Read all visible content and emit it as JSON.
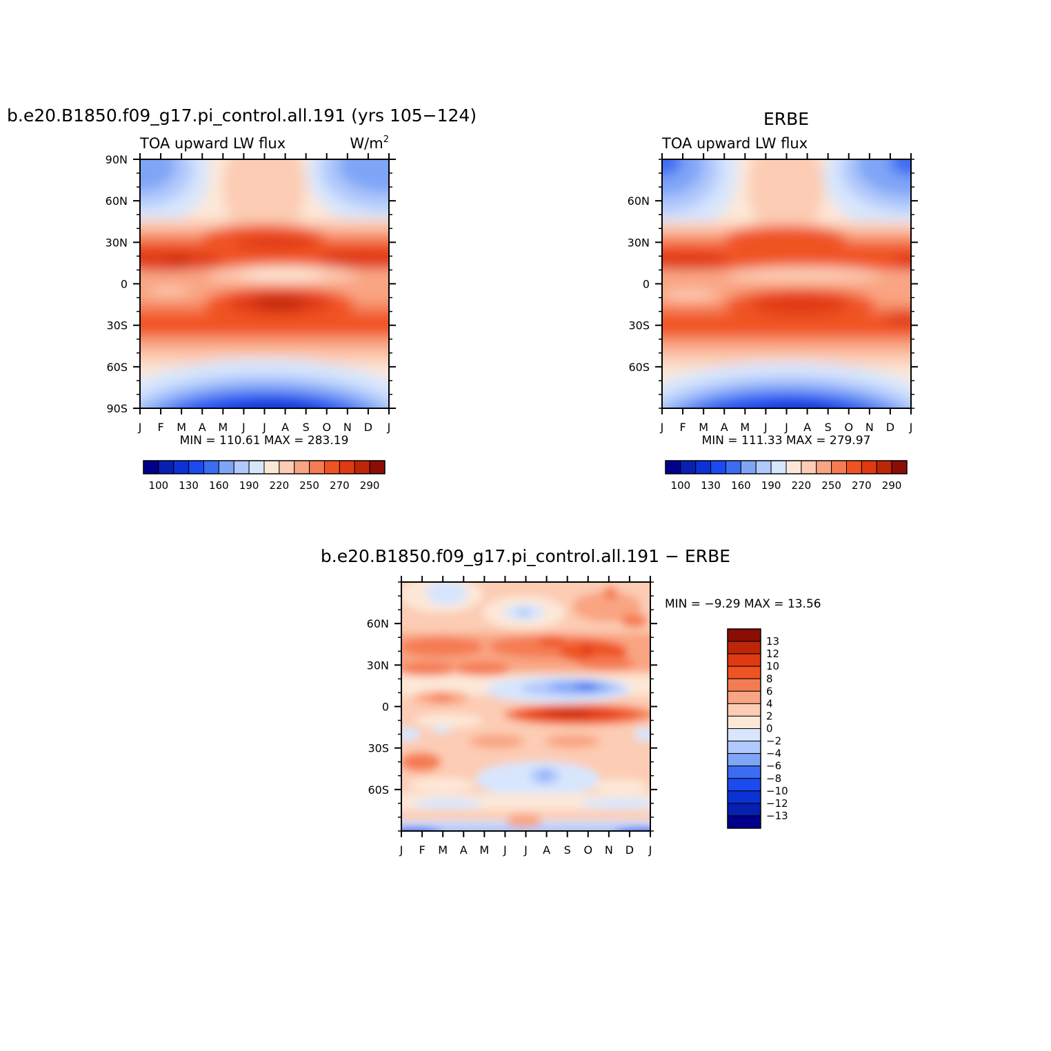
{
  "chart_data": [
    {
      "type": "heatmap",
      "id": "model",
      "title": "b.e20.B1850.f09_g17.pi_control.all.191 (yrs 105−124)",
      "left_label": "TOA upward LW flux",
      "units": "W/m²",
      "units_base": "W/m",
      "units_exp": "2",
      "x_ticks": [
        "J",
        "F",
        "M",
        "A",
        "M",
        "J",
        "J",
        "A",
        "S",
        "O",
        "N",
        "D",
        "J"
      ],
      "y_ticks": [
        "90N",
        "60N",
        "30N",
        "0",
        "30S",
        "60S",
        "90S"
      ],
      "y_tick_values": [
        90,
        60,
        30,
        0,
        -30,
        -60,
        -90
      ],
      "ylim": [
        -90,
        90
      ],
      "stats": "MIN =  110.61  MAX =  283.19",
      "min": 110.61,
      "max": 283.19,
      "colorbar_labels": [
        "100",
        "130",
        "160",
        "190",
        "220",
        "250",
        "270",
        "290"
      ]
    },
    {
      "type": "heatmap",
      "id": "obs",
      "title": "ERBE",
      "left_label": "TOA upward LW flux",
      "x_ticks": [
        "J",
        "F",
        "M",
        "A",
        "M",
        "J",
        "J",
        "A",
        "S",
        "O",
        "N",
        "D",
        "J"
      ],
      "y_ticks": [
        "60N",
        "30N",
        "0",
        "30S",
        "60S"
      ],
      "y_tick_values": [
        60,
        30,
        0,
        -30,
        -60
      ],
      "ylim": [
        -90,
        90
      ],
      "stats": "MIN =  111.33  MAX =  279.97",
      "min": 111.33,
      "max": 279.97,
      "colorbar_labels": [
        "100",
        "130",
        "160",
        "190",
        "220",
        "250",
        "270",
        "290"
      ]
    },
    {
      "type": "heatmap",
      "id": "diff",
      "title": "b.e20.B1850.f09_g17.pi_control.all.191 − ERBE",
      "x_ticks": [
        "J",
        "F",
        "M",
        "A",
        "M",
        "J",
        "J",
        "A",
        "S",
        "O",
        "N",
        "D",
        "J"
      ],
      "y_ticks": [
        "60N",
        "30N",
        "0",
        "30S",
        "60S"
      ],
      "y_tick_values": [
        60,
        30,
        0,
        -30,
        -60
      ],
      "ylim": [
        -90,
        90
      ],
      "stats": "MIN =   −9.29  MAX =   13.56",
      "min": -9.29,
      "max": 13.56,
      "colorbar_labels": [
        "13",
        "12",
        "10",
        "8",
        "6",
        "4",
        "2",
        "0",
        "−2",
        "−4",
        "−6",
        "−8",
        "−10",
        "−12",
        "−13"
      ]
    }
  ],
  "colors": {
    "palette": [
      "#00008b",
      "#0820b0",
      "#0b32d4",
      "#1a4af0",
      "#3c6cf2",
      "#7fa5f7",
      "#b0c8fb",
      "#d7e6fd",
      "#fde8d8",
      "#fcccb4",
      "#f9a482",
      "#f57b52",
      "#f05323",
      "#e03a12",
      "#bd2607",
      "#8a0d06"
    ]
  }
}
